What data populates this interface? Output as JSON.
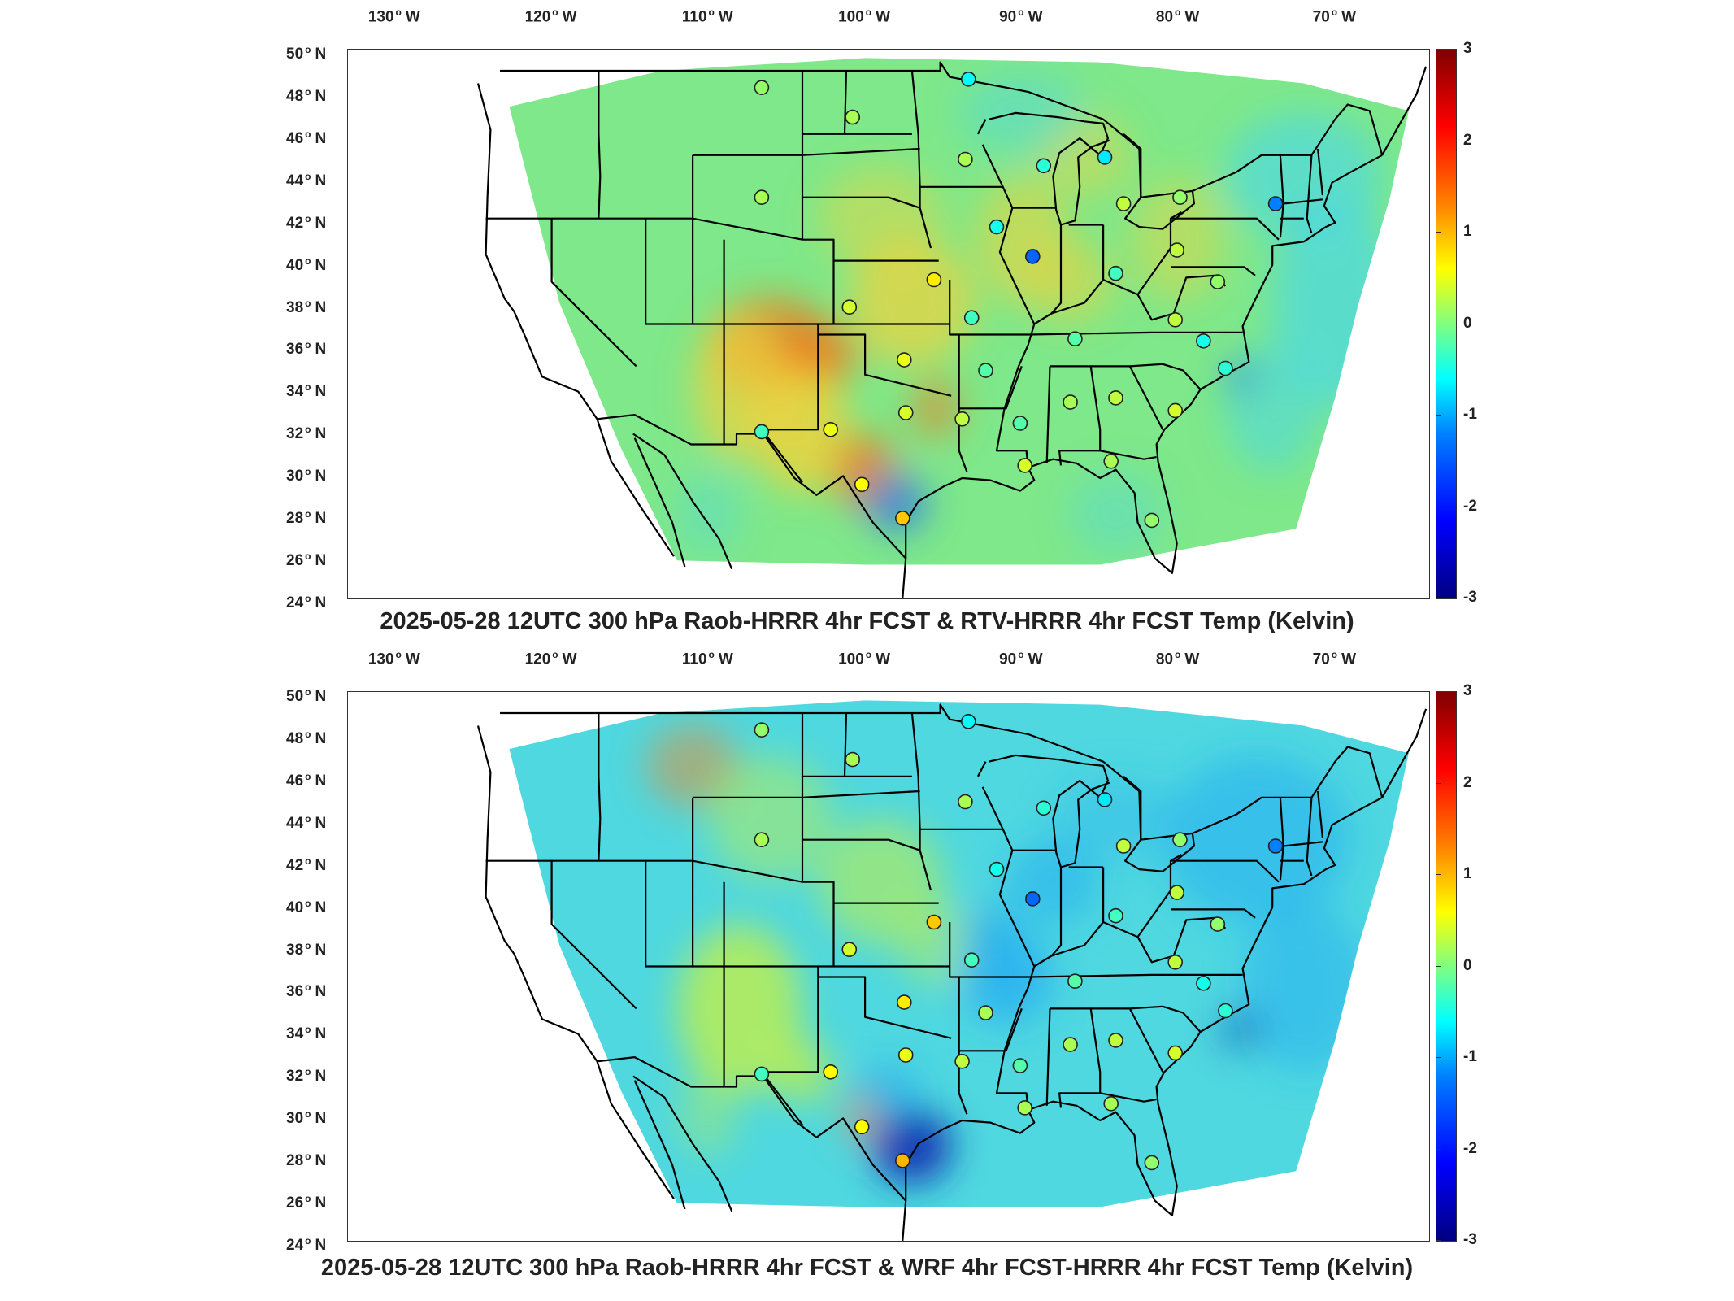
{
  "panels": [
    {
      "title": "2025-05-28 12UTC 300 hPa Raob-HRRR 4hr FCST & RTV-HRRR 4hr FCST Temp (Kelvin)",
      "field_colors": {
        "base": "#7ee88a",
        "warm": "#f2d23a",
        "hot": "#ee7a1e",
        "cool": "#4fd8e0",
        "cold": "#2a7ae6"
      },
      "stations": [
        {
          "lon": -106.6,
          "lat": 48.2,
          "value": 0.1
        },
        {
          "lon": -100.8,
          "lat": 46.8,
          "value": 0.2
        },
        {
          "lon": -93.4,
          "lat": 48.6,
          "value": -0.6
        },
        {
          "lon": -93.6,
          "lat": 44.8,
          "value": 0.2
        },
        {
          "lon": -88.6,
          "lat": 44.5,
          "value": -0.4
        },
        {
          "lon": -84.7,
          "lat": 44.9,
          "value": -0.7
        },
        {
          "lon": -83.5,
          "lat": 42.7,
          "value": 0.3
        },
        {
          "lon": -79.9,
          "lat": 43.0,
          "value": 0.1
        },
        {
          "lon": -73.8,
          "lat": 42.7,
          "value": -1.2
        },
        {
          "lon": -106.6,
          "lat": 43.0,
          "value": 0.2
        },
        {
          "lon": -91.6,
          "lat": 41.6,
          "value": -0.5
        },
        {
          "lon": -89.3,
          "lat": 40.2,
          "value": -1.4
        },
        {
          "lon": -84.0,
          "lat": 39.4,
          "value": -0.3
        },
        {
          "lon": -80.1,
          "lat": 40.5,
          "value": 0.3
        },
        {
          "lon": -77.5,
          "lat": 39.0,
          "value": 0.1
        },
        {
          "lon": -95.6,
          "lat": 39.1,
          "value": 0.7
        },
        {
          "lon": -101.0,
          "lat": 37.8,
          "value": 0.4
        },
        {
          "lon": -93.2,
          "lat": 37.3,
          "value": -0.3
        },
        {
          "lon": -86.6,
          "lat": 36.3,
          "value": -0.2
        },
        {
          "lon": -80.2,
          "lat": 37.2,
          "value": 0.3
        },
        {
          "lon": -78.4,
          "lat": 36.2,
          "value": -0.5
        },
        {
          "lon": -97.5,
          "lat": 35.3,
          "value": 0.5
        },
        {
          "lon": -92.3,
          "lat": 34.8,
          "value": -0.2
        },
        {
          "lon": -86.9,
          "lat": 33.3,
          "value": 0.2
        },
        {
          "lon": -84.0,
          "lat": 33.5,
          "value": 0.3
        },
        {
          "lon": -77.0,
          "lat": 34.9,
          "value": -0.4
        },
        {
          "lon": -80.2,
          "lat": 32.9,
          "value": 0.4
        },
        {
          "lon": -97.4,
          "lat": 32.8,
          "value": 0.4
        },
        {
          "lon": -93.8,
          "lat": 32.5,
          "value": 0.3
        },
        {
          "lon": -90.1,
          "lat": 32.3,
          "value": -0.2
        },
        {
          "lon": -102.2,
          "lat": 32.0,
          "value": 0.5
        },
        {
          "lon": -106.6,
          "lat": 31.9,
          "value": -0.3
        },
        {
          "lon": -100.2,
          "lat": 29.4,
          "value": 0.6
        },
        {
          "lon": -97.6,
          "lat": 27.8,
          "value": 0.9
        },
        {
          "lon": -84.3,
          "lat": 30.5,
          "value": 0.2
        },
        {
          "lon": -81.7,
          "lat": 27.7,
          "value": 0.1
        },
        {
          "lon": -89.8,
          "lat": 30.3,
          "value": 0.4
        }
      ]
    },
    {
      "title": "2025-05-28 12UTC 300 hPa Raob-HRRR 4hr FCST & WRF 4hr FCST-HRRR 4hr FCST Temp (Kelvin)",
      "field_colors": {
        "base": "#4fd8e0",
        "warm": "#c8f040",
        "hot": "#ee8a2e",
        "cool": "#2ab0f0",
        "cold": "#0a2ab0"
      },
      "stations": [
        {
          "lon": -106.6,
          "lat": 48.2,
          "value": 0.1
        },
        {
          "lon": -100.8,
          "lat": 46.8,
          "value": 0.2
        },
        {
          "lon": -93.4,
          "lat": 48.6,
          "value": -0.6
        },
        {
          "lon": -93.6,
          "lat": 44.8,
          "value": 0.2
        },
        {
          "lon": -88.6,
          "lat": 44.5,
          "value": -0.4
        },
        {
          "lon": -84.7,
          "lat": 44.9,
          "value": -0.7
        },
        {
          "lon": -83.5,
          "lat": 42.7,
          "value": 0.3
        },
        {
          "lon": -79.9,
          "lat": 43.0,
          "value": 0.1
        },
        {
          "lon": -73.8,
          "lat": 42.7,
          "value": -1.2
        },
        {
          "lon": -106.6,
          "lat": 43.0,
          "value": 0.2
        },
        {
          "lon": -91.6,
          "lat": 41.6,
          "value": -0.5
        },
        {
          "lon": -89.3,
          "lat": 40.2,
          "value": -1.4
        },
        {
          "lon": -84.0,
          "lat": 39.4,
          "value": -0.3
        },
        {
          "lon": -80.1,
          "lat": 40.5,
          "value": 0.3
        },
        {
          "lon": -77.5,
          "lat": 39.0,
          "value": 0.1
        },
        {
          "lon": -95.6,
          "lat": 39.1,
          "value": 0.9
        },
        {
          "lon": -101.0,
          "lat": 37.8,
          "value": 0.4
        },
        {
          "lon": -93.2,
          "lat": 37.3,
          "value": -0.3
        },
        {
          "lon": -86.6,
          "lat": 36.3,
          "value": -0.2
        },
        {
          "lon": -80.2,
          "lat": 37.2,
          "value": 0.3
        },
        {
          "lon": -78.4,
          "lat": 36.2,
          "value": -0.5
        },
        {
          "lon": -97.5,
          "lat": 35.3,
          "value": 0.7
        },
        {
          "lon": -92.3,
          "lat": 34.8,
          "value": 0.2
        },
        {
          "lon": -86.9,
          "lat": 33.3,
          "value": 0.2
        },
        {
          "lon": -84.0,
          "lat": 33.5,
          "value": 0.3
        },
        {
          "lon": -77.0,
          "lat": 34.9,
          "value": -0.4
        },
        {
          "lon": -80.2,
          "lat": 32.9,
          "value": 0.4
        },
        {
          "lon": -97.4,
          "lat": 32.8,
          "value": 0.5
        },
        {
          "lon": -93.8,
          "lat": 32.5,
          "value": 0.3
        },
        {
          "lon": -90.1,
          "lat": 32.3,
          "value": -0.2
        },
        {
          "lon": -102.2,
          "lat": 32.0,
          "value": 0.6
        },
        {
          "lon": -106.6,
          "lat": 31.9,
          "value": -0.3
        },
        {
          "lon": -100.2,
          "lat": 29.4,
          "value": 0.6
        },
        {
          "lon": -97.6,
          "lat": 27.8,
          "value": 1.0
        },
        {
          "lon": -84.3,
          "lat": 30.5,
          "value": 0.2
        },
        {
          "lon": -81.7,
          "lat": 27.7,
          "value": 0.1
        },
        {
          "lon": -89.8,
          "lat": 30.3,
          "value": 0.2
        }
      ]
    }
  ],
  "lon_ticks": [
    {
      "value": -130,
      "num": "130",
      "hem": "W"
    },
    {
      "value": -120,
      "num": "120",
      "hem": "W"
    },
    {
      "value": -110,
      "num": "110",
      "hem": "W"
    },
    {
      "value": -100,
      "num": "100",
      "hem": "W"
    },
    {
      "value": -90,
      "num": "90",
      "hem": "W"
    },
    {
      "value": -80,
      "num": "80",
      "hem": "W"
    },
    {
      "value": -70,
      "num": "70",
      "hem": "W"
    }
  ],
  "lat_ticks": [
    {
      "value": 50,
      "num": "50",
      "hem": "N"
    },
    {
      "value": 48,
      "num": "48",
      "hem": "N"
    },
    {
      "value": 46,
      "num": "46",
      "hem": "N"
    },
    {
      "value": 44,
      "num": "44",
      "hem": "N"
    },
    {
      "value": 42,
      "num": "42",
      "hem": "N"
    },
    {
      "value": 40,
      "num": "40",
      "hem": "N"
    },
    {
      "value": 38,
      "num": "38",
      "hem": "N"
    },
    {
      "value": 36,
      "num": "36",
      "hem": "N"
    },
    {
      "value": 34,
      "num": "34",
      "hem": "N"
    },
    {
      "value": 32,
      "num": "32",
      "hem": "N"
    },
    {
      "value": 30,
      "num": "30",
      "hem": "N"
    },
    {
      "value": 28,
      "num": "28",
      "hem": "N"
    },
    {
      "value": 26,
      "num": "26",
      "hem": "N"
    },
    {
      "value": 24,
      "num": "24",
      "hem": "N"
    }
  ],
  "colorbar": {
    "min": -3,
    "max": 3,
    "ticks": [
      "3",
      "2",
      "1",
      "0",
      "-1",
      "-2",
      "-3"
    ]
  }
}
